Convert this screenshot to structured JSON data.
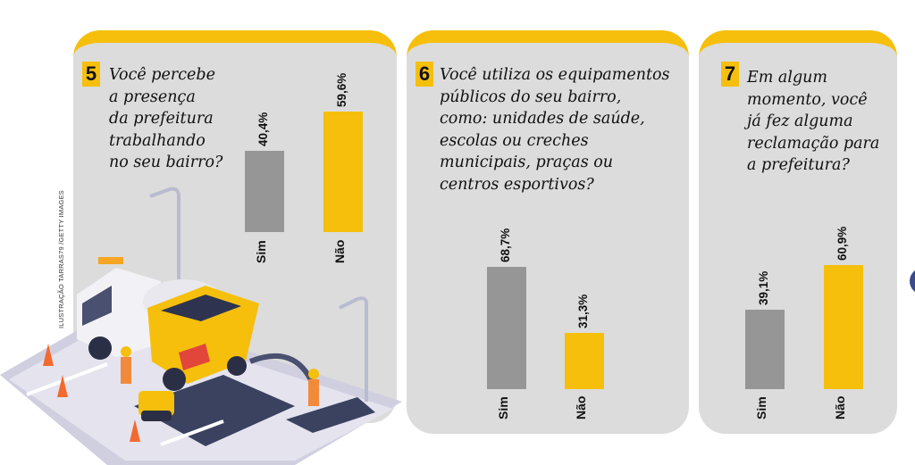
{
  "credit": "ILUSTRAÇÃO TARRAS79 /GETTY IMAGES",
  "colors": {
    "sim": "#969696",
    "nao": "#f5bf0c",
    "accent": "#f5bf0c",
    "panel": "#dcdcdc"
  },
  "chart_data": [
    {
      "type": "bar",
      "number": "5",
      "title": "Você percebe\na presença\nda prefeitura\ntrabalhando\nno seu bairro?",
      "categories": [
        "Sim",
        "Não"
      ],
      "values": [
        40.4,
        59.6
      ],
      "value_labels": [
        "40,4%",
        "59,6%"
      ],
      "xlabel": "",
      "ylabel": "",
      "ylim": [
        0,
        100
      ],
      "grid": false
    },
    {
      "type": "bar",
      "number": "6",
      "title": "Você utiliza os equipamentos\npúblicos do seu bairro,\ncomo: unidades de saúde,\nescolas ou creches\nmunicipais, praças ou\ncentros esportivos?",
      "categories": [
        "Sim",
        "Não"
      ],
      "values": [
        68.7,
        31.3
      ],
      "value_labels": [
        "68,7%",
        "31,3%"
      ],
      "xlabel": "",
      "ylabel": "",
      "ylim": [
        0,
        100
      ],
      "grid": false
    },
    {
      "type": "bar",
      "number": "7",
      "title": "Em algum\nmomento, você\njá fez alguma\nreclamação para\na prefeitura?",
      "categories": [
        "Sim",
        "Não"
      ],
      "values": [
        39.1,
        60.9
      ],
      "value_labels": [
        "39,1%",
        "60,9%"
      ],
      "xlabel": "",
      "ylabel": "",
      "ylim": [
        0,
        100
      ],
      "grid": false
    }
  ]
}
